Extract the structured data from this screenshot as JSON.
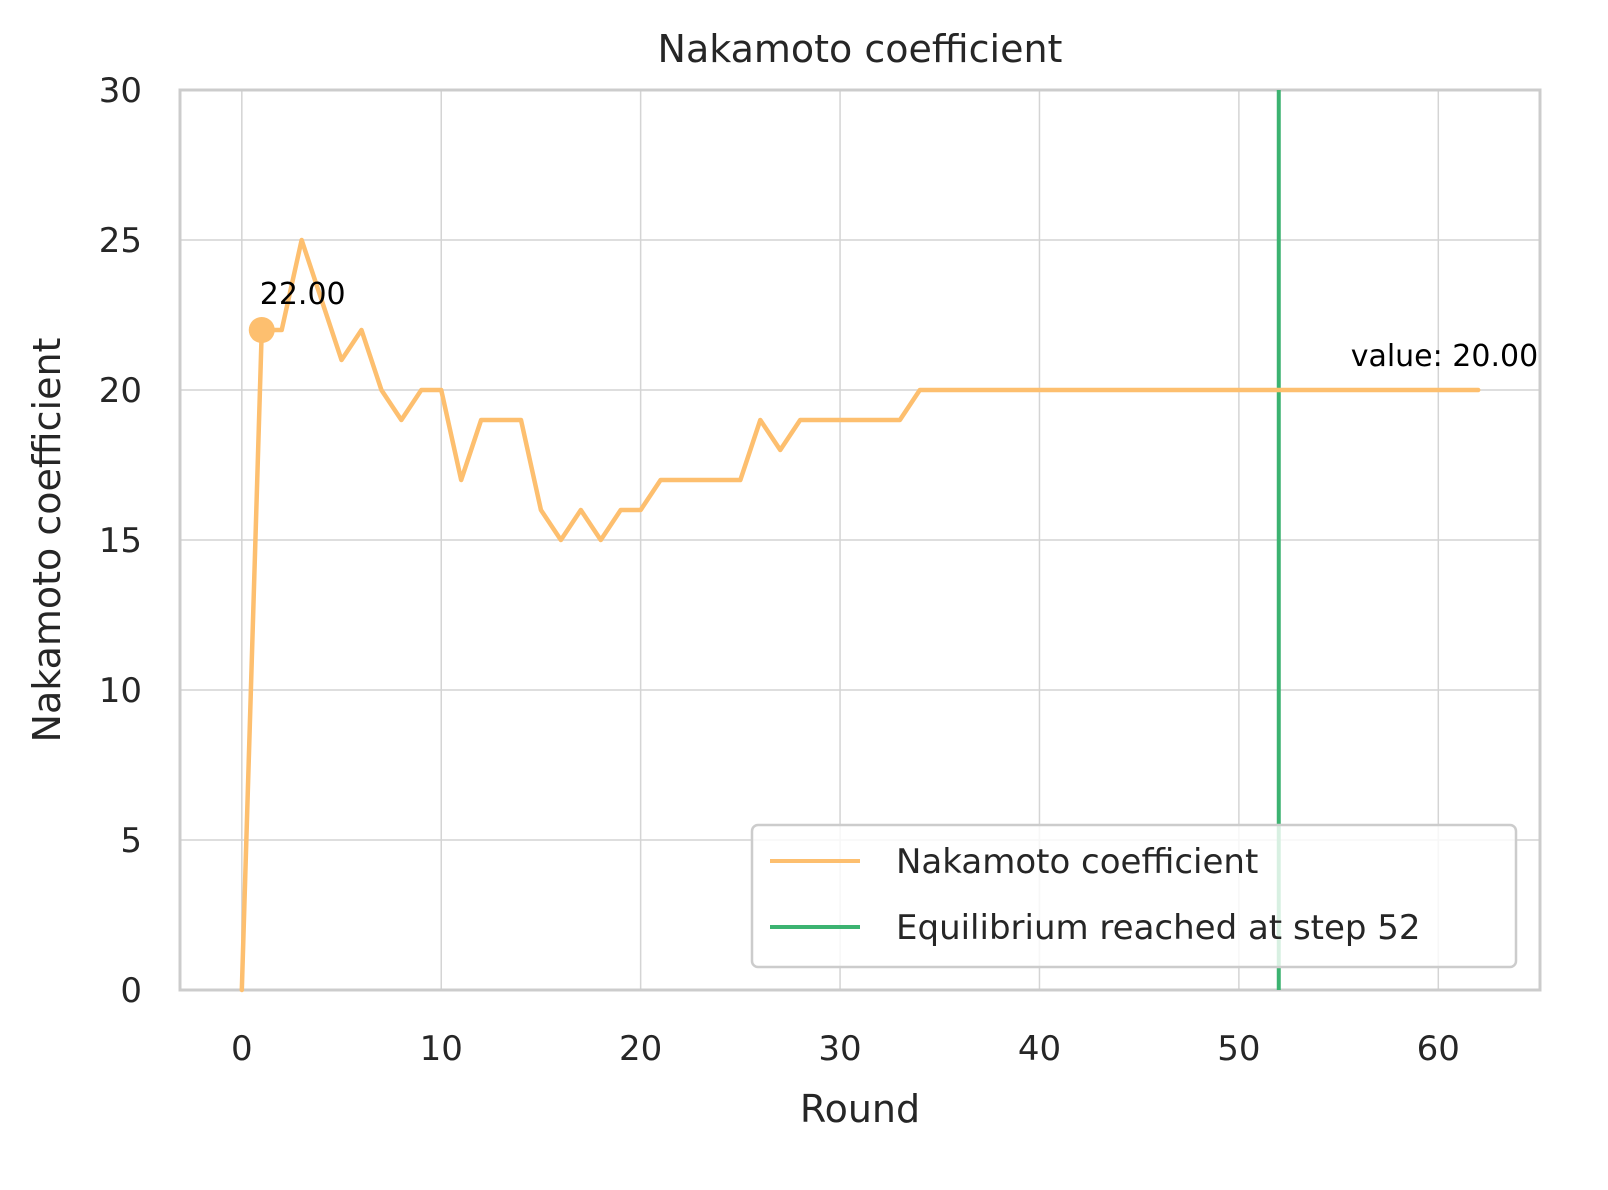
{
  "chart_data": {
    "type": "line",
    "title": "Nakamoto coefficient",
    "xlabel": "Round",
    "ylabel": "Nakamoto coefficient",
    "xlim": [
      -3.1,
      65.1
    ],
    "ylim": [
      0,
      30
    ],
    "xticks": [
      0,
      10,
      20,
      30,
      40,
      50,
      60
    ],
    "yticks": [
      0,
      5,
      10,
      15,
      20,
      25,
      30
    ],
    "grid": true,
    "legend_position": "lower-right",
    "series": [
      {
        "name": "Nakamoto coefficient",
        "color": "#fdbf6f",
        "x": [
          0,
          1,
          2,
          3,
          4,
          5,
          6,
          7,
          8,
          9,
          10,
          11,
          12,
          13,
          14,
          15,
          16,
          17,
          18,
          19,
          20,
          21,
          22,
          23,
          24,
          25,
          26,
          27,
          28,
          29,
          30,
          31,
          32,
          33,
          34,
          35,
          36,
          37,
          38,
          39,
          40,
          41,
          42,
          43,
          44,
          45,
          46,
          47,
          48,
          49,
          50,
          51,
          52,
          53,
          54,
          55,
          56,
          57,
          58,
          59,
          60,
          61,
          62
        ],
        "y": [
          0,
          22,
          22,
          25,
          23,
          21,
          22,
          20,
          19,
          20,
          20,
          17,
          19,
          19,
          19,
          16,
          15,
          16,
          15,
          16,
          16,
          17,
          17,
          17,
          17,
          17,
          19,
          18,
          19,
          19,
          19,
          19,
          19,
          19,
          20,
          20,
          20,
          20,
          20,
          20,
          20,
          20,
          20,
          20,
          20,
          20,
          20,
          20,
          20,
          20,
          20,
          20,
          20,
          20,
          20,
          20,
          20,
          20,
          20,
          20,
          20,
          20,
          20
        ]
      }
    ],
    "vline": {
      "name": "Equilibrium reached at step 52",
      "x": 52,
      "color": "#3cb371"
    },
    "marker": {
      "x": 1,
      "y": 22,
      "label": "22.00"
    },
    "end_annotation": {
      "x": 62,
      "y": 20,
      "label": "value: 20.00"
    }
  }
}
